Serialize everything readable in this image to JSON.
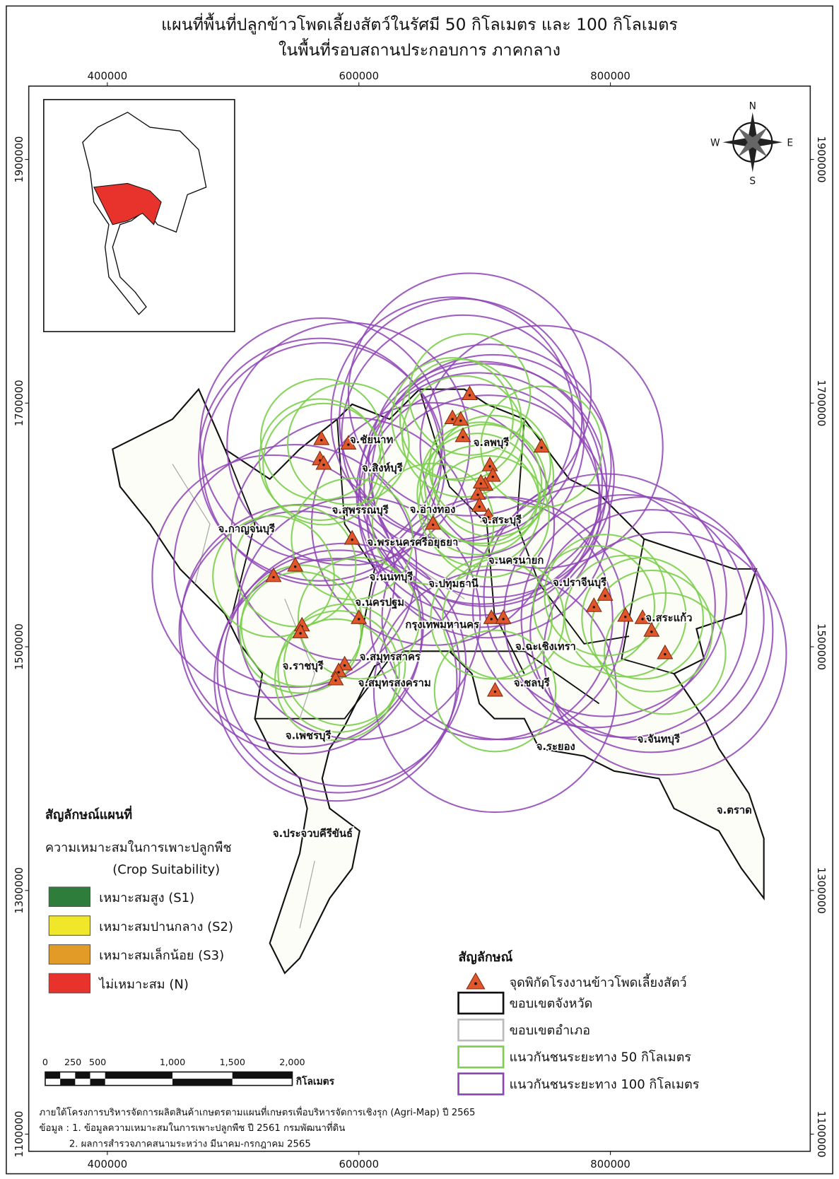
{
  "header": {
    "title": [
      "แผนที่พื้นที่ปลูกข้าวโพดเลี้ยงสัตว์ในรัศมี 50 กิโลเมตร และ 100 กิโลเมตร",
      "ในพื้นที่รอบสถานประกอบการ ภาคกลาง"
    ]
  },
  "grid": {
    "xlim": [
      337500,
      958900
    ],
    "ylim": [
      1085900,
      1960200
    ],
    "xticks": [
      400000,
      600000,
      800000
    ],
    "yticks": [
      1900000,
      1700000,
      1500000,
      1300000,
      1100000
    ]
  },
  "compass": {
    "n": "N",
    "s": "S",
    "w": "W",
    "e": "E"
  },
  "provinces": [
    "จ.ชัยนาท",
    "จ.ลพบุรี",
    "จ.สิงห์บุรี",
    "จ.สุพรรณบุรี",
    "จ.อ่างทอง",
    "จ.สระบุรี",
    "จ.กาญจนบุรี",
    "จ.พระนครศรีอยุธยา",
    "จ.นครนายก",
    "จ.นนทบุรี",
    "จ.ปทุมธานี",
    "จ.ปราจีนบุรี",
    "จ.นครปฐม",
    "กรุงเทพมหานคร",
    "จ.สระแก้ว",
    "จ.ฉะเชิงเทรา",
    "จ.ราชบุรี",
    "จ.สมุทรสาคร",
    "จ.สมุทรสงคราม",
    "จ.ชลบุรี",
    "จ.เพชรบุรี",
    "จ.ระยอง",
    "จ.จันทบุรี",
    "จ.ตราด",
    "จ.ประจวบคีรีขันธ์"
  ],
  "legend_suitability": {
    "title": "สัญลักษณ์แผนที่",
    "subtitle": "ความเหมาะสมในการเพาะปลูกพืช",
    "subtitle_en": "(Crop Suitability)",
    "items": [
      {
        "label": "เหมาะสมสูง (S1)",
        "color": "#2e7d3a"
      },
      {
        "label": "เหมาะสมปานกลาง (S2)",
        "color": "#f0e62a"
      },
      {
        "label": "เหมาะสมเล็กน้อย (S3)",
        "color": "#e39b27"
      },
      {
        "label": "ไม่เหมาะสม (N)",
        "color": "#e8332d"
      }
    ]
  },
  "legend_symbols": {
    "title": "สัญลักษณ์",
    "items": [
      "จุดพิกัดโรงงานข้าวโพดเลี้ยงสัตว์",
      "ขอบเขตจังหวัด",
      "ขอบเขตอำเภอ",
      "แนวกันชนระยะทาง 50 กิโลเมตร",
      "แนวกันชนระยะทาง 100 กิโลเมตร"
    ]
  },
  "scale": {
    "labels": [
      "0",
      "250",
      "500",
      "1,000",
      "1,500",
      "2,000"
    ],
    "unit": "กิโลเมตร"
  },
  "footnotes": [
    "ภายใต้โครงการบริหารจัดการผลิตสินค้าเกษตรตามแผนที่เกษตรเพื่อบริหารจัดการเชิงรุก (Agri-Map) ปี 2565",
    "ข้อมูล : 1. ข้อมูลความเหมาะสมในการเพาะปลูกพืช ปี 2561 กรมพัฒนาที่ดิน",
    "2. ผลการสำรวจภาคสนามระหว่าง มีนาคม-กรกฎาคม 2565"
  ]
}
